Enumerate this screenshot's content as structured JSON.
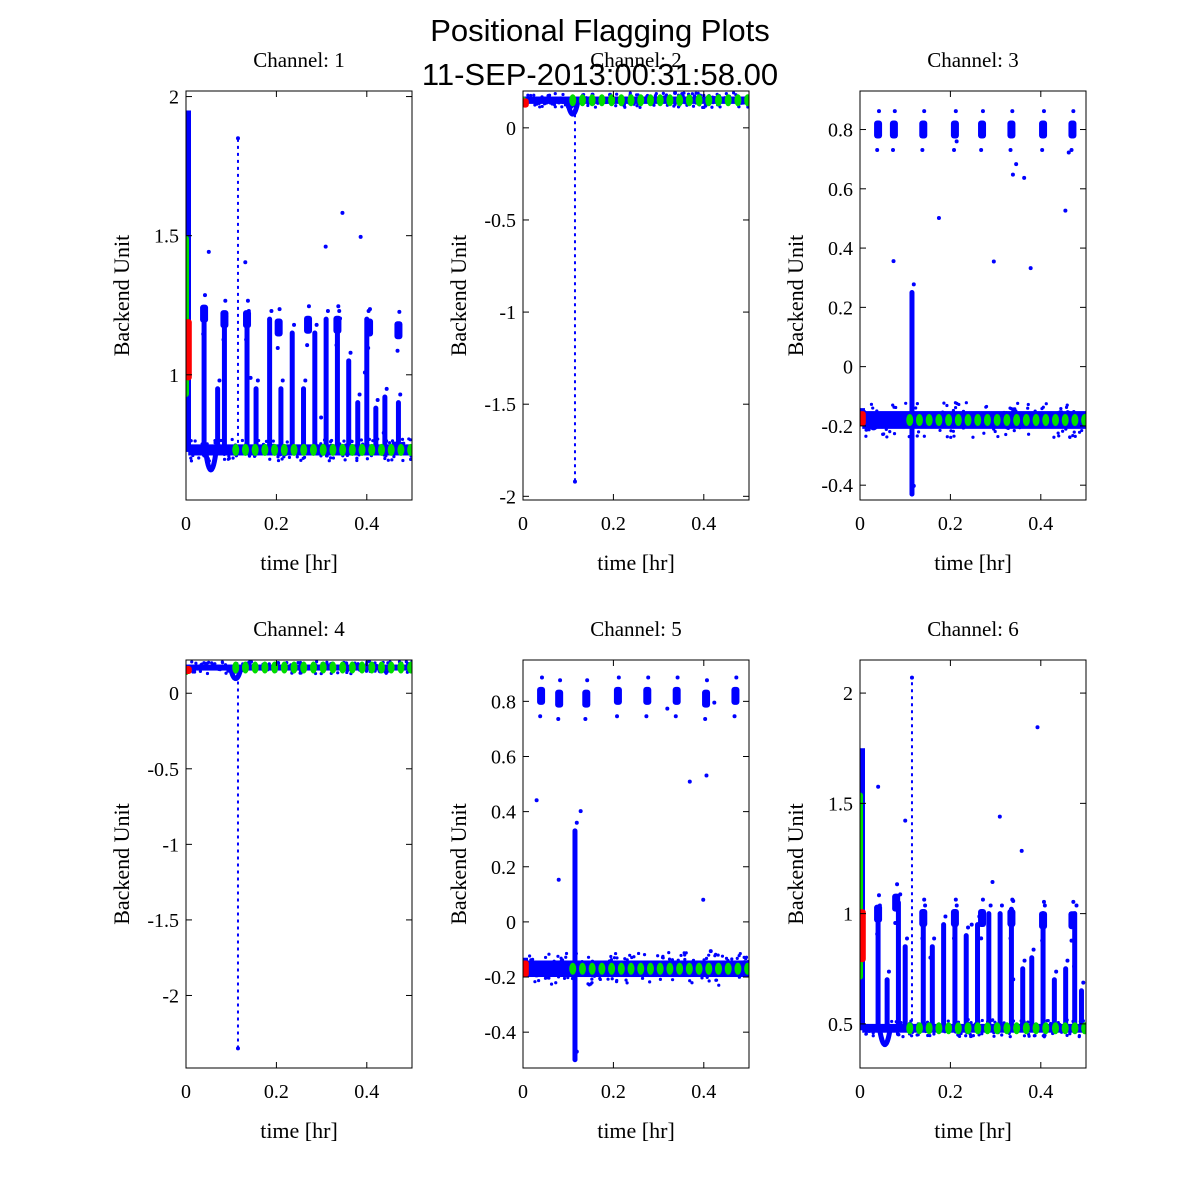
{
  "figure": {
    "title_line1": "Positional Flagging Plots",
    "title_line2": "11-SEP-2013:00:31:58.00"
  },
  "colors": {
    "blue": "#0000ff",
    "green": "#00dd00",
    "red": "#ff0000"
  },
  "chart_data": [
    {
      "type": "scatter",
      "title": "Channel: 1",
      "xlabel": "time [hr]",
      "ylabel": "Backend Unit",
      "xlim": [
        0,
        0.5
      ],
      "ylim": [
        0.55,
        2.02
      ],
      "xticks": [
        0,
        0.2,
        0.4
      ],
      "xtick_labels": [
        "0",
        "0.2",
        "0.4"
      ],
      "yticks": [
        1,
        1.5,
        2
      ],
      "ytick_labels": [
        "1",
        "1.5",
        "2"
      ],
      "baseline": 0.73,
      "noise": 0.02,
      "spikes": [
        {
          "x": 0.04,
          "top": 1.2
        },
        {
          "x": 0.07,
          "top": 0.95
        },
        {
          "x": 0.085,
          "top": 1.18
        },
        {
          "x": 0.115,
          "top": 1.85
        },
        {
          "x": 0.135,
          "top": 1.2
        },
        {
          "x": 0.155,
          "top": 0.95
        },
        {
          "x": 0.185,
          "top": 1.2
        },
        {
          "x": 0.21,
          "top": 0.95
        },
        {
          "x": 0.235,
          "top": 1.15
        },
        {
          "x": 0.26,
          "top": 0.95
        },
        {
          "x": 0.285,
          "top": 1.15
        },
        {
          "x": 0.31,
          "top": 1.2
        },
        {
          "x": 0.335,
          "top": 1.2
        },
        {
          "x": 0.36,
          "top": 1.05
        },
        {
          "x": 0.38,
          "top": 0.9
        },
        {
          "x": 0.4,
          "top": 1.2
        },
        {
          "x": 0.42,
          "top": 0.88
        },
        {
          "x": 0.44,
          "top": 0.92
        },
        {
          "x": 0.47,
          "top": 0.9
        }
      ],
      "clusters": [
        {
          "x": 0.04,
          "y": 1.22
        },
        {
          "x": 0.085,
          "y": 1.2
        },
        {
          "x": 0.135,
          "y": 1.2
        },
        {
          "x": 0.205,
          "y": 1.17
        },
        {
          "x": 0.27,
          "y": 1.18
        },
        {
          "x": 0.335,
          "y": 1.18
        },
        {
          "x": 0.405,
          "y": 1.17
        },
        {
          "x": 0.47,
          "y": 1.16
        }
      ],
      "start_dip": {
        "x": 0.055,
        "y": 0.6
      },
      "start_green": [
        0.92,
        1.5
      ],
      "start_red": [
        0.98,
        1.2
      ],
      "start_blue_top": 1.95
    },
    {
      "type": "scatter",
      "title": "Channel: 2",
      "xlabel": "time [hr]",
      "ylabel": "Backend Unit",
      "xlim": [
        0,
        0.5
      ],
      "ylim": [
        -2.02,
        0.2
      ],
      "xticks": [
        0,
        0.2,
        0.4
      ],
      "xtick_labels": [
        "0",
        "0.2",
        "0.4"
      ],
      "yticks": [
        0,
        -0.5,
        -1,
        -1.5,
        -2
      ],
      "ytick_labels": [
        "0",
        "-0.5",
        "-1",
        "-1.5",
        "-2"
      ],
      "baseline": 0.15,
      "noise": 0.02,
      "spikes": [
        {
          "x": 0.115,
          "top": -1.92
        }
      ],
      "clusters": [],
      "start_dip": {
        "x": 0.11,
        "y": 0.02
      },
      "start_green": [
        0.12,
        0.17
      ],
      "start_red": [
        0.11,
        0.16
      ],
      "start_blue_top": 0.17
    },
    {
      "type": "scatter",
      "title": "Channel: 3",
      "xlabel": "time [hr]",
      "ylabel": "Backend Unit",
      "xlim": [
        0,
        0.5
      ],
      "ylim": [
        -0.45,
        0.93
      ],
      "xticks": [
        0,
        0.2,
        0.4
      ],
      "xtick_labels": [
        "0",
        "0.2",
        "0.4"
      ],
      "yticks": [
        0.8,
        0.6,
        0.4,
        0.2,
        0,
        -0.2,
        -0.4
      ],
      "ytick_labels": [
        "0.8",
        "0.6",
        "0.4",
        "0.2",
        "0",
        "-0.2",
        "-0.4"
      ],
      "baseline": -0.18,
      "noise": 0.03,
      "spikes": [
        {
          "x": 0.115,
          "top": 0.25
        },
        {
          "x": 0.115,
          "top": -0.43
        }
      ],
      "clusters": [
        {
          "x": 0.04,
          "y": 0.8
        },
        {
          "x": 0.075,
          "y": 0.8
        },
        {
          "x": 0.14,
          "y": 0.8
        },
        {
          "x": 0.21,
          "y": 0.8
        },
        {
          "x": 0.27,
          "y": 0.8
        },
        {
          "x": 0.335,
          "y": 0.8
        },
        {
          "x": 0.405,
          "y": 0.8
        },
        {
          "x": 0.47,
          "y": 0.8
        }
      ],
      "start_dip": {
        "x": 0.03,
        "y": -0.22
      },
      "start_green": [
        -0.2,
        -0.15
      ],
      "start_red": [
        -0.2,
        -0.15
      ],
      "start_blue_top": -0.14
    },
    {
      "type": "scatter",
      "title": "Channel: 4",
      "xlabel": "time [hr]",
      "ylabel": "Backend Unit",
      "xlim": [
        0,
        0.5
      ],
      "ylim": [
        -2.48,
        0.22
      ],
      "xticks": [
        0,
        0.2,
        0.4
      ],
      "xtick_labels": [
        "0",
        "0.2",
        "0.4"
      ],
      "yticks": [
        0,
        -0.5,
        -1,
        -1.5,
        -2
      ],
      "ytick_labels": [
        "0",
        "-0.5",
        "-1",
        "-1.5",
        "-2"
      ],
      "baseline": 0.17,
      "noise": 0.02,
      "spikes": [
        {
          "x": 0.115,
          "top": -2.35
        }
      ],
      "clusters": [],
      "start_dip": {
        "x": 0.11,
        "y": 0.05
      },
      "start_green": [
        0.12,
        0.18
      ],
      "start_red": [
        0.13,
        0.18
      ],
      "start_blue_top": 0.19
    },
    {
      "type": "scatter",
      "title": "Channel: 5",
      "xlabel": "time [hr]",
      "ylabel": "Backend Unit",
      "xlim": [
        0,
        0.5
      ],
      "ylim": [
        -0.53,
        0.95
      ],
      "xticks": [
        0,
        0.2,
        0.4
      ],
      "xtick_labels": [
        "0",
        "0.2",
        "0.4"
      ],
      "yticks": [
        0.8,
        0.6,
        0.4,
        0.2,
        0,
        -0.2,
        -0.4
      ],
      "ytick_labels": [
        "0.8",
        "0.6",
        "0.4",
        "0.2",
        "0",
        "-0.2",
        "-0.4"
      ],
      "baseline": -0.17,
      "noise": 0.03,
      "spikes": [
        {
          "x": 0.115,
          "top": 0.33
        },
        {
          "x": 0.115,
          "top": -0.5
        }
      ],
      "clusters": [
        {
          "x": 0.04,
          "y": 0.82
        },
        {
          "x": 0.08,
          "y": 0.81
        },
        {
          "x": 0.14,
          "y": 0.81
        },
        {
          "x": 0.21,
          "y": 0.82
        },
        {
          "x": 0.275,
          "y": 0.82
        },
        {
          "x": 0.34,
          "y": 0.82
        },
        {
          "x": 0.405,
          "y": 0.81
        },
        {
          "x": 0.47,
          "y": 0.82
        }
      ],
      "start_dip": {
        "x": 0.03,
        "y": -0.2
      },
      "start_green": [
        -0.2,
        -0.14
      ],
      "start_red": [
        -0.2,
        -0.14
      ],
      "start_blue_top": -0.13
    },
    {
      "type": "scatter",
      "title": "Channel: 6",
      "xlabel": "time [hr]",
      "ylabel": "Backend Unit",
      "xlim": [
        0,
        0.5
      ],
      "ylim": [
        0.3,
        2.15
      ],
      "xticks": [
        0,
        0.2,
        0.4
      ],
      "xtick_labels": [
        "0",
        "0.2",
        "0.4"
      ],
      "yticks": [
        0.5,
        1,
        1.5,
        2
      ],
      "ytick_labels": [
        "0.5",
        "1",
        "1.5",
        "2"
      ],
      "baseline": 0.48,
      "noise": 0.02,
      "spikes": [
        {
          "x": 0.04,
          "top": 1.0
        },
        {
          "x": 0.06,
          "top": 0.7
        },
        {
          "x": 0.085,
          "top": 1.05
        },
        {
          "x": 0.1,
          "top": 0.85
        },
        {
          "x": 0.115,
          "top": 2.07
        },
        {
          "x": 0.14,
          "top": 1.0
        },
        {
          "x": 0.16,
          "top": 0.85
        },
        {
          "x": 0.185,
          "top": 0.95
        },
        {
          "x": 0.21,
          "top": 1.0
        },
        {
          "x": 0.235,
          "top": 0.9
        },
        {
          "x": 0.26,
          "top": 0.95
        },
        {
          "x": 0.285,
          "top": 1.0
        },
        {
          "x": 0.31,
          "top": 1.0
        },
        {
          "x": 0.335,
          "top": 1.02
        },
        {
          "x": 0.36,
          "top": 0.75
        },
        {
          "x": 0.38,
          "top": 0.8
        },
        {
          "x": 0.405,
          "top": 1.0
        },
        {
          "x": 0.43,
          "top": 0.7
        },
        {
          "x": 0.455,
          "top": 0.75
        },
        {
          "x": 0.475,
          "top": 1.0
        },
        {
          "x": 0.49,
          "top": 0.65
        }
      ],
      "clusters": [
        {
          "x": 0.04,
          "y": 1.0
        },
        {
          "x": 0.08,
          "y": 1.05
        },
        {
          "x": 0.14,
          "y": 0.98
        },
        {
          "x": 0.21,
          "y": 0.98
        },
        {
          "x": 0.27,
          "y": 0.98
        },
        {
          "x": 0.335,
          "y": 0.98
        },
        {
          "x": 0.405,
          "y": 0.97
        },
        {
          "x": 0.47,
          "y": 0.97
        }
      ],
      "start_dip": {
        "x": 0.055,
        "y": 0.35
      },
      "start_green": [
        0.7,
        1.55
      ],
      "start_red": [
        0.78,
        1.02
      ],
      "start_blue_top": 1.75
    }
  ]
}
